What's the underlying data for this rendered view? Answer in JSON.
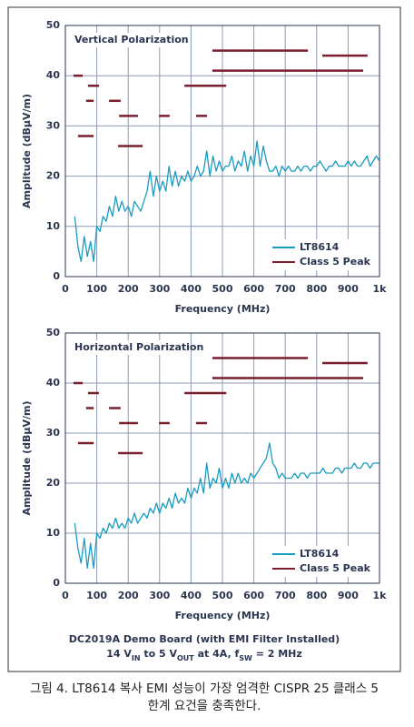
{
  "chart_data": [
    {
      "type": "line",
      "title": "Vertical Polarization",
      "xlabel": "Frequency (MHz)",
      "ylabel": "Amplitude (dBµV/m)",
      "xlim": [
        0,
        1000
      ],
      "ylim": [
        0,
        50
      ],
      "xticks": [
        0,
        100,
        200,
        300,
        400,
        500,
        600,
        700,
        800,
        900,
        {
          "value": 1000,
          "label": "1k"
        }
      ],
      "yticks": [
        0,
        10,
        20,
        30,
        40,
        50
      ],
      "grid": true,
      "legend": "lower right",
      "series": [
        {
          "name": "LT8614",
          "color": "#1a9cc0",
          "x": [
            30,
            40,
            50,
            60,
            70,
            80,
            90,
            100,
            110,
            120,
            130,
            140,
            150,
            160,
            170,
            180,
            190,
            200,
            210,
            220,
            230,
            240,
            250,
            260,
            270,
            280,
            290,
            300,
            310,
            320,
            330,
            340,
            350,
            360,
            370,
            380,
            390,
            400,
            410,
            420,
            430,
            440,
            450,
            460,
            470,
            480,
            490,
            500,
            510,
            520,
            530,
            540,
            550,
            560,
            570,
            580,
            590,
            600,
            610,
            620,
            630,
            640,
            650,
            660,
            670,
            680,
            690,
            700,
            710,
            720,
            730,
            740,
            750,
            760,
            770,
            780,
            790,
            800,
            810,
            820,
            830,
            840,
            850,
            860,
            870,
            880,
            890,
            900,
            910,
            920,
            930,
            940,
            950,
            960,
            970,
            980,
            990,
            1000
          ],
          "values": [
            12,
            6,
            3,
            8,
            4,
            7,
            3,
            10,
            9,
            12,
            11,
            14,
            12,
            16,
            13,
            15,
            13,
            14,
            12,
            15,
            14,
            13,
            15,
            17,
            21,
            16,
            20,
            17,
            19,
            17,
            22,
            18,
            21,
            18,
            20,
            19,
            21,
            19,
            20,
            22,
            20,
            21,
            25,
            20,
            24,
            21,
            23,
            21,
            22,
            22,
            24,
            21,
            23,
            22,
            25,
            21,
            24,
            22,
            27,
            22,
            26,
            23,
            21,
            21,
            22,
            20,
            22,
            21,
            22,
            21,
            21,
            22,
            21,
            22,
            22,
            21,
            22,
            22,
            23,
            22,
            21,
            22,
            22,
            23,
            22,
            22,
            22,
            23,
            22,
            23,
            22,
            22,
            23,
            24,
            22,
            23,
            24,
            23
          ]
        },
        {
          "name": "Class 5 Peak",
          "color": "#7a1f2e",
          "segments": [
            {
              "x": [
                26,
                55
              ],
              "value": 40
            },
            {
              "x": [
                72,
                107
              ],
              "value": 38
            },
            {
              "x": [
                66,
                90
              ],
              "value": 35
            },
            {
              "x": [
                40,
                90
              ],
              "value": 28
            },
            {
              "x": [
                139,
                176
              ],
              "value": 35
            },
            {
              "x": [
                171,
                231
              ],
              "value": 32
            },
            {
              "x": [
                168,
                246
              ],
              "value": 26
            },
            {
              "x": [
                298,
                332
              ],
              "value": 32
            },
            {
              "x": [
                379,
                512
              ],
              "value": 38
            },
            {
              "x": [
                416,
                451
              ],
              "value": 32
            },
            {
              "x": [
                468,
                772
              ],
              "value": 45
            },
            {
              "x": [
                468,
                948
              ],
              "value": 41
            },
            {
              "x": [
                818,
                962
              ],
              "value": 44
            }
          ]
        }
      ]
    },
    {
      "type": "line",
      "title": "Horizontal Polarization",
      "xlabel": "Frequency (MHz)",
      "ylabel": "Amplitude (dBµV/m)",
      "xlim": [
        0,
        1000
      ],
      "ylim": [
        0,
        50
      ],
      "xticks": [
        0,
        100,
        200,
        300,
        400,
        500,
        600,
        700,
        800,
        900,
        {
          "value": 1000,
          "label": "1k"
        }
      ],
      "yticks": [
        0,
        10,
        20,
        30,
        40,
        50
      ],
      "grid": true,
      "legend": "lower right",
      "series": [
        {
          "name": "LT8614",
          "color": "#1a9cc0",
          "x": [
            30,
            40,
            50,
            60,
            70,
            80,
            90,
            100,
            110,
            120,
            130,
            140,
            150,
            160,
            170,
            180,
            190,
            200,
            210,
            220,
            230,
            240,
            250,
            260,
            270,
            280,
            290,
            300,
            310,
            320,
            330,
            340,
            350,
            360,
            370,
            380,
            390,
            400,
            410,
            420,
            430,
            440,
            450,
            460,
            470,
            480,
            490,
            500,
            510,
            520,
            530,
            540,
            550,
            560,
            570,
            580,
            590,
            600,
            610,
            620,
            630,
            640,
            650,
            660,
            670,
            680,
            690,
            700,
            710,
            720,
            730,
            740,
            750,
            760,
            770,
            780,
            790,
            800,
            810,
            820,
            830,
            840,
            850,
            860,
            870,
            880,
            890,
            900,
            910,
            920,
            930,
            940,
            950,
            960,
            970,
            980,
            990,
            1000
          ],
          "values": [
            12,
            7,
            4,
            9,
            3,
            8,
            3,
            10,
            9,
            11,
            10,
            12,
            11,
            13,
            11,
            12,
            11,
            13,
            12,
            14,
            12,
            13,
            14,
            13,
            15,
            14,
            16,
            14,
            16,
            15,
            17,
            15,
            18,
            16,
            17,
            16,
            19,
            17,
            19,
            18,
            21,
            18,
            24,
            19,
            21,
            20,
            23,
            19,
            21,
            19,
            22,
            20,
            22,
            20,
            21,
            20,
            22,
            21,
            22,
            23,
            24,
            25,
            28,
            24,
            23,
            21,
            22,
            21,
            21,
            21,
            22,
            21,
            22,
            22,
            21,
            22,
            22,
            22,
            22,
            23,
            22,
            22,
            22,
            23,
            23,
            22,
            23,
            23,
            23,
            24,
            23,
            23,
            24,
            24,
            23,
            24,
            24,
            24
          ]
        },
        {
          "name": "Class 5 Peak",
          "color": "#7a1f2e",
          "segments": [
            {
              "x": [
                26,
                55
              ],
              "value": 40
            },
            {
              "x": [
                72,
                107
              ],
              "value": 38
            },
            {
              "x": [
                66,
                90
              ],
              "value": 35
            },
            {
              "x": [
                40,
                90
              ],
              "value": 28
            },
            {
              "x": [
                139,
                176
              ],
              "value": 35
            },
            {
              "x": [
                171,
                231
              ],
              "value": 32
            },
            {
              "x": [
                168,
                246
              ],
              "value": 26
            },
            {
              "x": [
                298,
                332
              ],
              "value": 32
            },
            {
              "x": [
                379,
                512
              ],
              "value": 38
            },
            {
              "x": [
                416,
                451
              ],
              "value": 32
            },
            {
              "x": [
                468,
                772
              ],
              "value": 45
            },
            {
              "x": [
                468,
                948
              ],
              "value": 41
            },
            {
              "x": [
                818,
                962
              ],
              "value": 44
            }
          ]
        }
      ]
    }
  ],
  "note": {
    "line1": "DC2019A Demo Board (with EMI Filter Installed)",
    "line2": [
      "14 V",
      "IN",
      " to 5 V",
      "OUT",
      " at 4A, f",
      "SW",
      " = 2 MHz"
    ]
  },
  "caption": [
    "그림 4. LT8614 복사 EMI 성능이 가장 엄격한 CISPR 25 클래스 5",
    "한계 요건을 충족한다."
  ]
}
